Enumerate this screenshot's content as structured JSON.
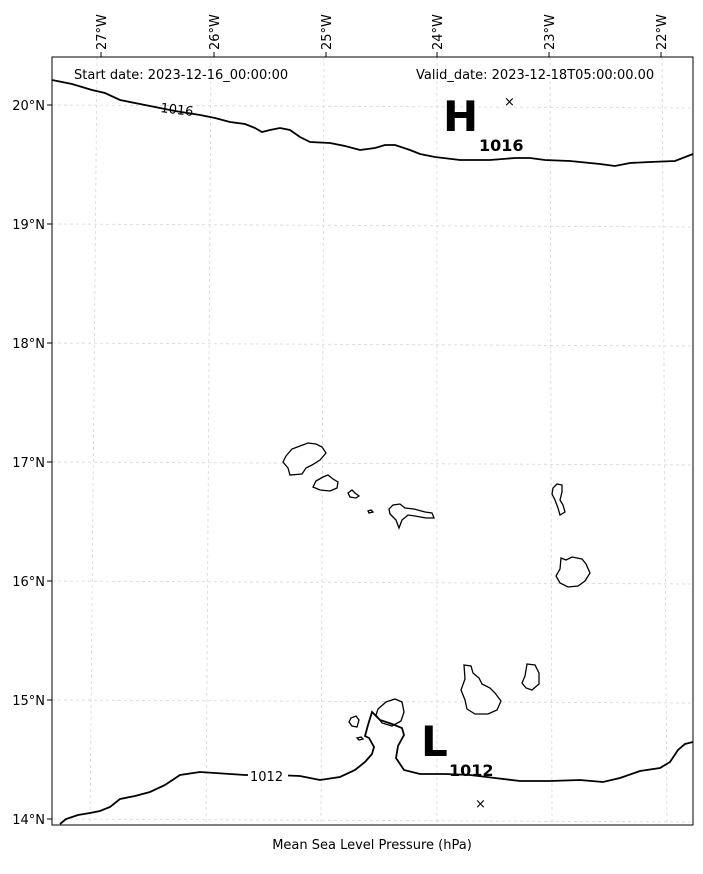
{
  "header": {
    "start_date": "Start date: 2023-12-16_00:00:00",
    "valid_date": "Valid_date: 2023-12-18T05:00:00.00"
  },
  "axes": {
    "longitude_labels": [
      "27°W",
      "26°W",
      "25°W",
      "24°W",
      "23°W",
      "22°W"
    ],
    "latitude_labels": [
      "20°N",
      "19°N",
      "18°N",
      "17°N",
      "16°N",
      "15°N",
      "14°N"
    ]
  },
  "centers": {
    "high": {
      "symbol": "H",
      "value": "1016",
      "marker": "×"
    },
    "low": {
      "symbol": "L",
      "value": "1012",
      "marker": "×"
    }
  },
  "contours": {
    "upper_label": "1016",
    "lower_label": "1012"
  },
  "footer": {
    "caption": "Mean Sea Level Pressure (hPa)"
  }
}
